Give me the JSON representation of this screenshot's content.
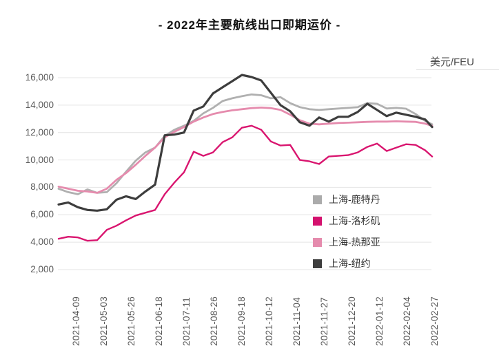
{
  "chart_data": {
    "type": "line",
    "title": "- 2022年主要航线出口即期运价 -",
    "unit_label": "美元/FEU",
    "x_tick_labels": [
      "2021-04-09",
      "2021-05-03",
      "2021-05-26",
      "2021-06-18",
      "2021-07-11",
      "2021-08-26",
      "2021-09-18",
      "2021-10-12",
      "2021-11-04",
      "2021-11-27",
      "2021-12-20",
      "2022-01-12",
      "2022-02-04",
      "2022-02-27"
    ],
    "y_ticks": [
      2000,
      4000,
      6000,
      8000,
      10000,
      12000,
      14000,
      16000
    ],
    "ylim": [
      2000,
      16000
    ],
    "grid": "horizontal-only",
    "gridline_color": "#e4e4e4",
    "legend_position": "inside-right-lower",
    "sampling": {
      "note": "each series sampled uniformly along x; sample i sits at tick-index u = first_tick_index + step * i (0 = first x tick label)",
      "first_tick_index": -0.625,
      "step": 0.35,
      "points_per_series": 40
    },
    "series": [
      {
        "name": "上海-鹿特丹",
        "color": "#b0b0b0",
        "swatch_color": "#ababab",
        "stroke_width": 2.8,
        "values": [
          7900,
          7650,
          7500,
          7850,
          7600,
          7650,
          8300,
          9150,
          9950,
          10550,
          10900,
          11750,
          12200,
          12500,
          12850,
          13400,
          13800,
          14300,
          14500,
          14650,
          14780,
          14720,
          14500,
          14580,
          14150,
          13850,
          13700,
          13650,
          13700,
          13750,
          13800,
          13850,
          14150,
          14100,
          13750,
          13800,
          13740,
          13350,
          12850,
          12600
        ]
      },
      {
        "name": "上海-热那亚",
        "color": "#e58bad",
        "swatch_color": "#e58bad",
        "stroke_width": 2.8,
        "values": [
          8050,
          7900,
          7750,
          7700,
          7600,
          7900,
          8550,
          9050,
          9650,
          10300,
          10900,
          11650,
          12050,
          12400,
          12800,
          13100,
          13350,
          13500,
          13620,
          13700,
          13780,
          13820,
          13780,
          13650,
          13300,
          12900,
          12650,
          12600,
          12650,
          12700,
          12720,
          12750,
          12780,
          12800,
          12800,
          12820,
          12800,
          12780,
          12650,
          12480
        ]
      },
      {
        "name": "上海-洛杉矶",
        "color": "#d9156f",
        "swatch_color": "#d4116e",
        "stroke_width": 2.4,
        "values": [
          4250,
          4400,
          4350,
          4100,
          4150,
          4900,
          5200,
          5600,
          5950,
          6150,
          6350,
          7500,
          8350,
          9100,
          10600,
          10300,
          10550,
          11300,
          11650,
          12350,
          12500,
          12200,
          11350,
          11050,
          11100,
          10000,
          9900,
          9700,
          10250,
          10300,
          10350,
          10550,
          10950,
          11200,
          10650,
          10900,
          11150,
          11100,
          10700,
          10250
        ]
      },
      {
        "name": "上海-纽约",
        "color": "#3d3d3d",
        "swatch_color": "#3d3d3d",
        "stroke_width": 3.2,
        "values": [
          6750,
          6900,
          6550,
          6350,
          6300,
          6400,
          7100,
          7350,
          7150,
          7700,
          8200,
          11800,
          11850,
          12000,
          13600,
          13900,
          14850,
          15300,
          15750,
          16200,
          16050,
          15800,
          14900,
          14000,
          13550,
          12750,
          12500,
          13100,
          12800,
          13150,
          13150,
          13500,
          14100,
          13650,
          13200,
          13450,
          13300,
          13150,
          12950,
          12400
        ]
      }
    ],
    "legend_order": [
      "上海-鹿特丹",
      "上海-洛杉矶",
      "上海-热那亚",
      "上海-纽约"
    ]
  }
}
